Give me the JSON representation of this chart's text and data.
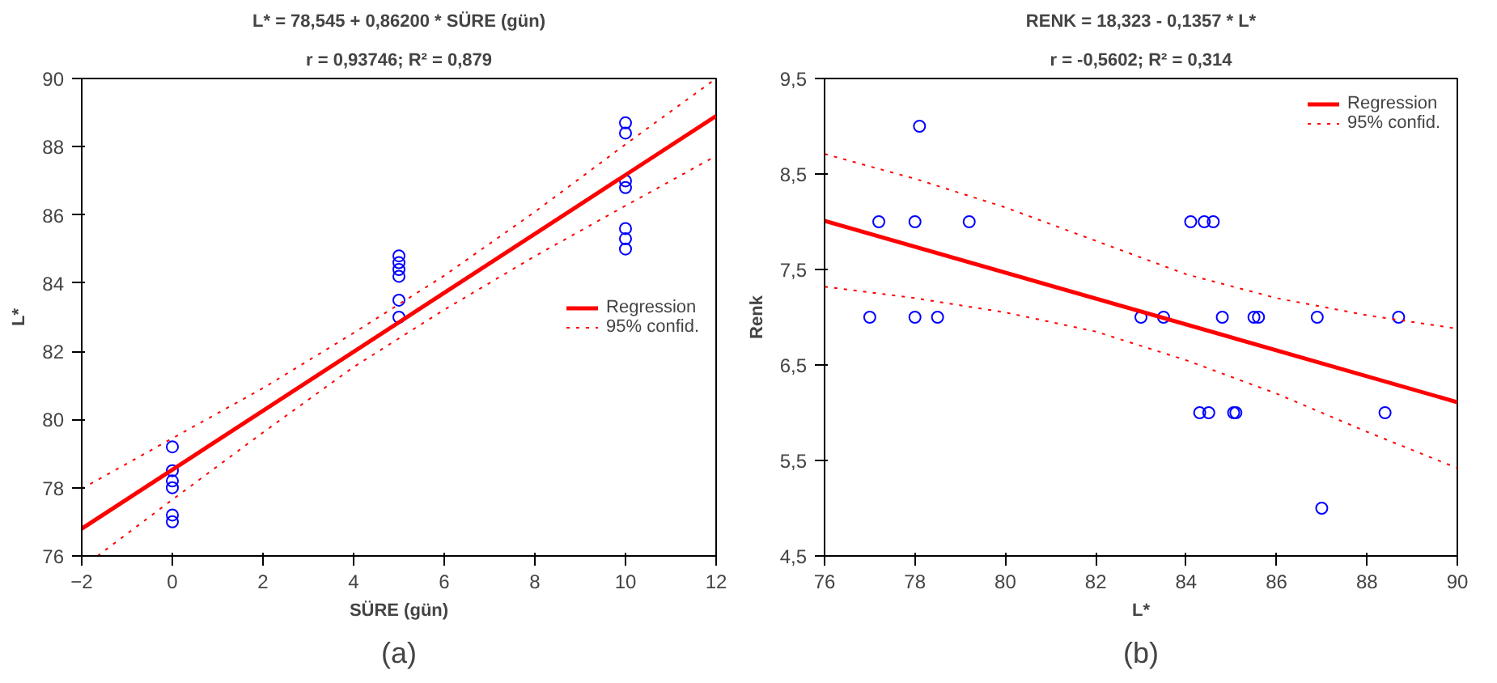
{
  "chart_data": [
    {
      "type": "scatter",
      "title": "L* = 78,545 + 0,86200 * SÜRE (gün)",
      "subtitle": "r = 0,93746; R² = 0,879",
      "xlabel": "SÜRE (gün)",
      "ylabel": "L*",
      "annotations": [
        "(a)"
      ],
      "xlim": [
        -2,
        12
      ],
      "ylim": [
        76,
        90
      ],
      "xticks": [
        -2,
        0,
        2,
        4,
        6,
        8,
        10,
        12
      ],
      "yticks": [
        76,
        78,
        80,
        82,
        84,
        86,
        88,
        90
      ],
      "grid": false,
      "legend": "right",
      "series": [
        {
          "marker": "circle",
          "color": "#0000ff",
          "x": [
            0,
            0,
            0,
            0,
            0,
            0,
            5,
            5,
            5,
            5,
            5,
            5,
            10,
            10,
            10,
            10,
            10,
            10,
            10
          ],
          "values": [
            79.2,
            78.5,
            78.2,
            78.0,
            77.2,
            77.0,
            84.8,
            84.6,
            84.4,
            84.2,
            83.5,
            83.0,
            88.7,
            88.4,
            87.0,
            86.8,
            85.6,
            85.3,
            85.0
          ]
        },
        {
          "type": "line",
          "name": "Regression",
          "color": "#ff0000",
          "line_style": "solid",
          "x": [
            -2,
            12
          ],
          "values": [
            76.8,
            88.9
          ]
        },
        {
          "type": "line",
          "name": "95% confid.",
          "color": "#ff0000",
          "line_style": "dotted",
          "x": [
            -2,
            0,
            2,
            4,
            6,
            8,
            10,
            12
          ],
          "values": [
            77.97,
            79.45,
            80.92,
            82.54,
            84.22,
            86.09,
            88.07,
            90.0
          ]
        },
        {
          "type": "line",
          "color": "#ff0000",
          "line_style": "dotted",
          "x": [
            -1.65,
            0,
            2,
            4,
            6,
            8,
            10,
            12
          ],
          "values": [
            76.0,
            77.65,
            79.62,
            81.54,
            83.22,
            84.79,
            86.27,
            87.73
          ]
        }
      ]
    },
    {
      "type": "scatter",
      "title": "RENK = 18,323 - 0,1357 * L*",
      "subtitle": "r = -0,5602; R² = 0,314",
      "xlabel": "L*",
      "ylabel": "Renk",
      "annotations": [
        "(b)"
      ],
      "xlim": [
        76,
        90
      ],
      "ylim": [
        4.5,
        9.5
      ],
      "xticks": [
        76,
        78,
        80,
        82,
        84,
        86,
        88,
        90
      ],
      "yticks": [
        {
          "value": 4.5,
          "label": "4,5"
        },
        {
          "value": 5.5,
          "label": "5,5"
        },
        {
          "value": 6.5,
          "label": "6,5"
        },
        {
          "value": 7.5,
          "label": "7,5"
        },
        {
          "value": 8.5,
          "label": "8,5"
        },
        {
          "value": 9.5,
          "label": "9,5"
        }
      ],
      "grid": false,
      "legend": "top right",
      "series": [
        {
          "marker": "circle",
          "color": "#0000ff",
          "x": [
            77.0,
            78.0,
            78.5,
            83.0,
            83.5,
            84.8,
            85.5,
            85.6,
            86.9,
            88.7,
            77.2,
            78.0,
            79.2,
            84.1,
            84.4,
            84.6,
            78.1,
            84.3,
            84.5,
            85.05,
            85.1,
            88.4,
            87.0
          ],
          "values": [
            7,
            7,
            7,
            7,
            7,
            7,
            7,
            7,
            7,
            7,
            8,
            8,
            8,
            8,
            8,
            8,
            9,
            6,
            6,
            6,
            6,
            6,
            5
          ]
        },
        {
          "type": "line",
          "name": "Regression",
          "color": "#ff0000",
          "line_style": "solid",
          "x": [
            76,
            90
          ],
          "values": [
            8.01,
            6.11
          ]
        },
        {
          "type": "line",
          "name": "95% confid.",
          "color": "#ff0000",
          "line_style": "dotted",
          "x": [
            76,
            78,
            80,
            82,
            84,
            86,
            88,
            90
          ],
          "values": [
            8.71,
            8.45,
            8.15,
            7.8,
            7.45,
            7.2,
            7.02,
            6.88
          ]
        },
        {
          "type": "line",
          "color": "#ff0000",
          "line_style": "dotted",
          "x": [
            76,
            78,
            80,
            82,
            84,
            86,
            88,
            90
          ],
          "values": [
            7.32,
            7.2,
            7.05,
            6.85,
            6.55,
            6.2,
            5.8,
            5.42
          ]
        }
      ]
    }
  ]
}
